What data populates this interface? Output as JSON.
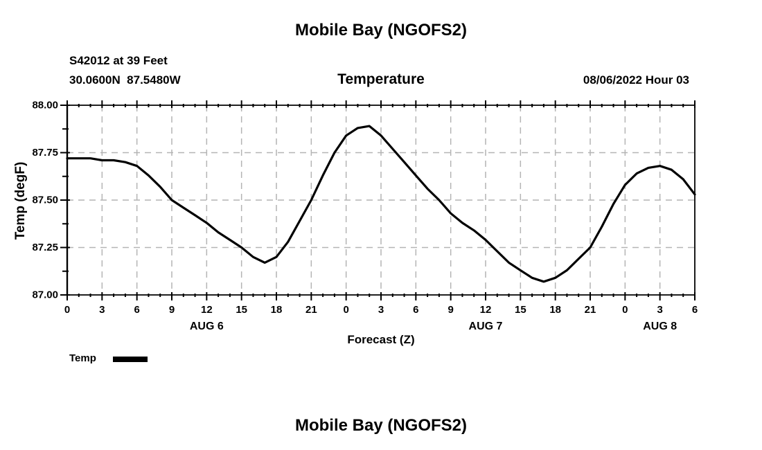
{
  "page": {
    "title_top": "Mobile Bay (NGOFS2)",
    "title_bottom": "Mobile Bay (NGOFS2)"
  },
  "header": {
    "station_line1": "S42012 at 39 Feet",
    "station_line2": "30.0600N  87.5480W",
    "plot_title": "Temperature",
    "datetime_label": "08/06/2022 Hour 03"
  },
  "axes": {
    "y_label": "Temp (degF)",
    "x_label": "Forecast (Z)",
    "y_tick_labels": [
      "88.00",
      "87.75",
      "87.50",
      "87.25",
      "87.00"
    ],
    "y_tick_values": [
      88.0,
      87.75,
      87.5,
      87.25,
      87.0
    ],
    "y_minor_tick_values": [
      87.875,
      87.625,
      87.375,
      87.125
    ],
    "x_major_step_hours": 3,
    "x_minor_step_hours": 1,
    "x_tick_labels": [
      "0",
      "3",
      "6",
      "9",
      "12",
      "15",
      "18",
      "21",
      "0",
      "3",
      "6",
      "9",
      "12",
      "15",
      "18",
      "21",
      "0",
      "3",
      "6"
    ],
    "day_labels": [
      {
        "label": "AUG 6",
        "hour": 12
      },
      {
        "label": "AUG 7",
        "hour": 36
      },
      {
        "label": "AUG 8",
        "hour": 51
      }
    ]
  },
  "legend": {
    "label": "Temp"
  },
  "colors": {
    "line": "#000000",
    "grid": "#b4b4b4",
    "frame": "#000000",
    "text": "#000000",
    "background": "#ffffff"
  },
  "chart_data": {
    "type": "line",
    "title": "Temperature",
    "xlabel": "Forecast (Z)",
    "ylabel": "Temp (degF)",
    "ylim": [
      87.0,
      88.0
    ],
    "xlim_hours": [
      0,
      54
    ],
    "grid": true,
    "legend_position": "bottom-left",
    "x_hours": [
      0,
      1,
      2,
      3,
      4,
      5,
      6,
      7,
      8,
      9,
      10,
      11,
      12,
      13,
      14,
      15,
      16,
      17,
      18,
      19,
      20,
      21,
      22,
      23,
      24,
      25,
      26,
      27,
      28,
      29,
      30,
      31,
      32,
      33,
      34,
      35,
      36,
      37,
      38,
      39,
      40,
      41,
      42,
      43,
      44,
      45,
      46,
      47,
      48,
      49,
      50,
      51,
      52,
      53,
      54
    ],
    "series": [
      {
        "name": "Temp",
        "values": [
          87.72,
          87.72,
          87.72,
          87.71,
          87.71,
          87.7,
          87.68,
          87.63,
          87.57,
          87.5,
          87.46,
          87.42,
          87.38,
          87.33,
          87.29,
          87.25,
          87.2,
          87.17,
          87.2,
          87.28,
          87.39,
          87.5,
          87.63,
          87.75,
          87.84,
          87.88,
          87.89,
          87.84,
          87.77,
          87.7,
          87.63,
          87.56,
          87.5,
          87.43,
          87.38,
          87.34,
          87.29,
          87.23,
          87.17,
          87.13,
          87.09,
          87.07,
          87.09,
          87.13,
          87.19,
          87.25,
          87.36,
          87.48,
          87.58,
          87.64,
          87.67,
          87.68,
          87.66,
          87.61,
          87.53
        ]
      }
    ]
  }
}
